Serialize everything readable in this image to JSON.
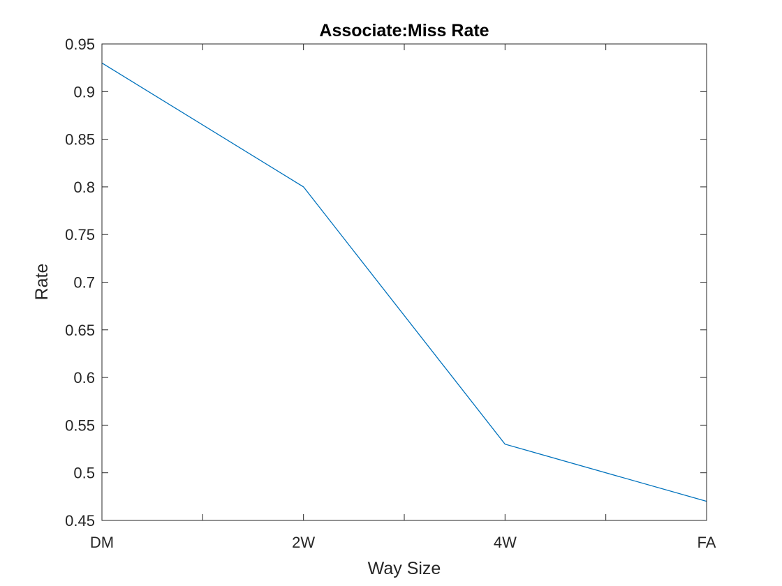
{
  "chart_data": {
    "type": "line",
    "title": "Associate:Miss Rate",
    "xlabel": "Way Size",
    "ylabel": "Rate",
    "categories": [
      "DM",
      "2W",
      "4W",
      "FA"
    ],
    "series": [
      {
        "values": [
          0.93,
          0.8,
          0.53,
          0.47
        ],
        "color": "#0072BD"
      }
    ],
    "ylim": [
      0.45,
      0.95
    ],
    "yticks": [
      "0.45",
      "0.5",
      "0.55",
      "0.6",
      "0.65",
      "0.7",
      "0.75",
      "0.8",
      "0.85",
      "0.9",
      "0.95"
    ],
    "grid": false,
    "box": true
  }
}
